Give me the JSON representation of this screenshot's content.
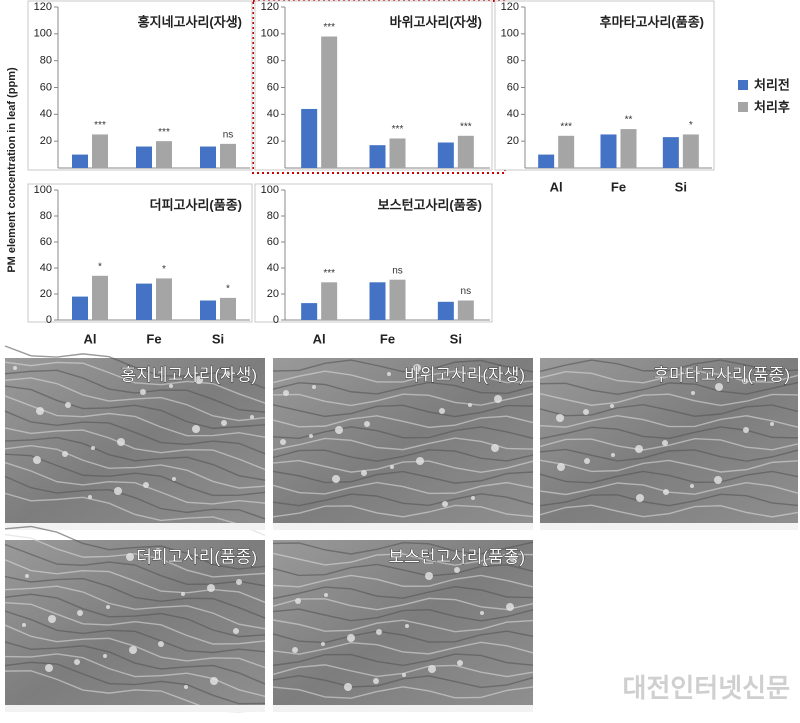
{
  "y_axis_label": "PM element concentration in leaf (ppm)",
  "legend": [
    {
      "name": "처리전",
      "color": "#4472c4"
    },
    {
      "name": "처리후",
      "color": "#a5a5a5"
    }
  ],
  "chart_data": [
    {
      "type": "bar",
      "title": "홍지네고사리(자생)",
      "categories": [
        null,
        null,
        null
      ],
      "series": [
        {
          "name": "처리전",
          "color": "#4472c4",
          "values": [
            10,
            16,
            16
          ]
        },
        {
          "name": "처리후",
          "color": "#a5a5a5",
          "values": [
            25,
            20,
            18
          ]
        }
      ],
      "significance": [
        "***",
        "***",
        "ns"
      ],
      "ylim": [
        0,
        120
      ],
      "yticks": [
        20,
        40,
        60,
        80,
        100,
        120
      ]
    },
    {
      "type": "bar",
      "title": "바위고사리(자생)",
      "categories": [
        null,
        null,
        null
      ],
      "series": [
        {
          "name": "처리전",
          "color": "#4472c4",
          "values": [
            44,
            17,
            19
          ]
        },
        {
          "name": "처리후",
          "color": "#a5a5a5",
          "values": [
            98,
            22,
            24
          ]
        }
      ],
      "significance": [
        "***",
        "***",
        "***"
      ],
      "ylim": [
        0,
        120
      ],
      "yticks": [
        20,
        40,
        60,
        80,
        100,
        120
      ]
    },
    {
      "type": "bar",
      "title": "후마타고사리(품종)",
      "categories": [
        "Al",
        "Fe",
        "Si"
      ],
      "series": [
        {
          "name": "처리전",
          "color": "#4472c4",
          "values": [
            10,
            25,
            23
          ]
        },
        {
          "name": "처리후",
          "color": "#a5a5a5",
          "values": [
            24,
            29,
            25
          ]
        }
      ],
      "significance": [
        "***",
        "**",
        "*"
      ],
      "ylim": [
        0,
        120
      ],
      "yticks": [
        20,
        40,
        60,
        80,
        100,
        120
      ]
    },
    {
      "type": "bar",
      "title": "더피고사리(품종)",
      "categories": [
        "Al",
        "Fe",
        "Si"
      ],
      "series": [
        {
          "name": "처리전",
          "color": "#4472c4",
          "values": [
            18,
            28,
            15
          ]
        },
        {
          "name": "처리후",
          "color": "#a5a5a5",
          "values": [
            34,
            32,
            17
          ]
        }
      ],
      "significance": [
        "*",
        "*",
        "*"
      ],
      "ylim": [
        0,
        100
      ],
      "yticks": [
        0,
        20,
        40,
        60,
        80,
        100
      ]
    },
    {
      "type": "bar",
      "title": "보스턴고사리(품종)",
      "categories": [
        "Al",
        "Fe",
        "Si"
      ],
      "series": [
        {
          "name": "처리전",
          "color": "#4472c4",
          "values": [
            13,
            29,
            14
          ]
        },
        {
          "name": "처리후",
          "color": "#a5a5a5",
          "values": [
            29,
            31,
            15
          ]
        }
      ],
      "significance": [
        "***",
        "ns",
        "ns"
      ],
      "ylim": [
        0,
        100
      ],
      "yticks": [
        0,
        20,
        40,
        60,
        80,
        100
      ]
    }
  ],
  "images": [
    {
      "label": "홍지네고사리(자생)"
    },
    {
      "label": "바위고사리(자생)"
    },
    {
      "label": "후마타고사리(품종)"
    },
    {
      "label": "더피고사리(품종)"
    },
    {
      "label": "보스턴고사리(품종)"
    }
  ],
  "watermark": "대전인터넷신문"
}
